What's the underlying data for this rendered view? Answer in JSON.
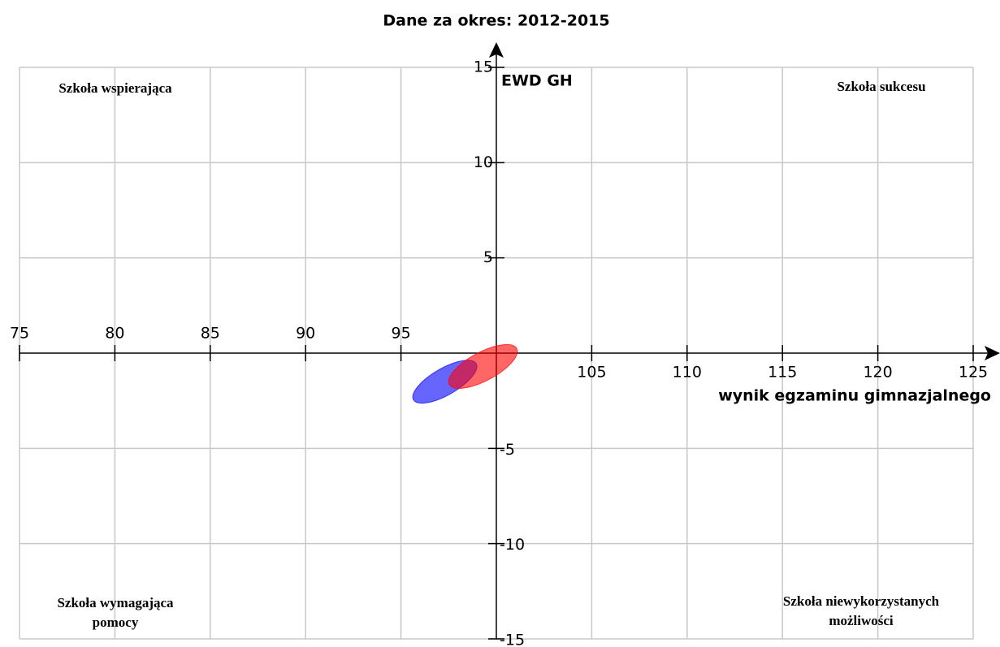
{
  "chart_data": {
    "type": "ellipse",
    "title": "Dane za okres: 2012-2015",
    "xlabel": "wynik egzaminu gimnazjalnego",
    "ylabel": "EWD GH",
    "xlim": [
      75,
      125
    ],
    "ylim": [
      -15,
      15
    ],
    "xticks": [
      75,
      80,
      85,
      90,
      95,
      105,
      110,
      115,
      120,
      125
    ],
    "yticks": [
      15,
      10,
      5,
      -5,
      -10,
      -15
    ],
    "origin": {
      "x": 100,
      "y": 0
    },
    "grid": true,
    "quadrants": {
      "top_left": [
        "Szkoła wspierająca"
      ],
      "top_right": [
        "Szkoła sukcesu"
      ],
      "bottom_left": [
        "Szkoła wymagająca",
        "pomocy"
      ],
      "bottom_right": [
        "Szkoła niewykorzystanych",
        "możliwości"
      ]
    },
    "series": [
      {
        "color": "#0000ff",
        "x": 97.3,
        "y": -1.5,
        "rx": 1.9,
        "ry": 0.7,
        "angle": -30
      },
      {
        "color": "#ff0000",
        "x": 99.3,
        "y": -0.7,
        "rx": 2.0,
        "ry": 0.75,
        "angle": -28
      }
    ]
  }
}
